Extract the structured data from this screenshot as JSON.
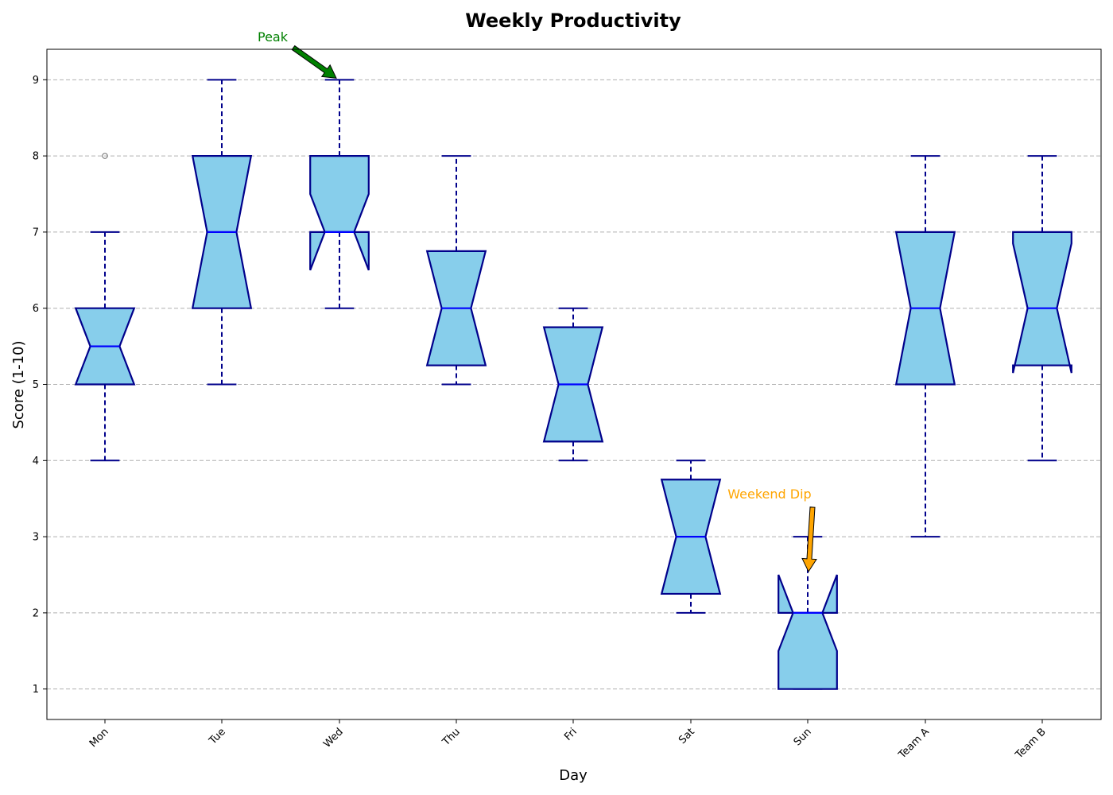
{
  "chart_data": {
    "type": "boxplot",
    "title": "Weekly Productivity",
    "xlabel": "Day",
    "ylabel": "Score (1-10)",
    "ylim": [
      0.6,
      9.4
    ],
    "yticks": [
      1,
      2,
      3,
      4,
      5,
      6,
      7,
      8,
      9
    ],
    "grid": "y-dashed",
    "notched": true,
    "categories": [
      "Mon",
      "Tue",
      "Wed",
      "Thu",
      "Fri",
      "Sat",
      "Sun",
      "Team A",
      "Team B"
    ],
    "boxes": [
      {
        "label": "Mon",
        "whisker_low": 4,
        "q1": 5,
        "median": 5.5,
        "q3": 6,
        "whisker_high": 7,
        "notch": [
          5.0,
          6.0
        ],
        "outliers": [
          8
        ]
      },
      {
        "label": "Tue",
        "whisker_low": 5,
        "q1": 6,
        "median": 7,
        "q3": 8,
        "whisker_high": 9,
        "notch": [
          6.0,
          8.0
        ],
        "outliers": []
      },
      {
        "label": "Wed",
        "whisker_low": 6,
        "q1": 7,
        "median": 7,
        "q3": 8,
        "whisker_high": 9,
        "notch": [
          6.5,
          7.5
        ],
        "outliers": []
      },
      {
        "label": "Thu",
        "whisker_low": 5,
        "q1": 5.25,
        "median": 6,
        "q3": 6.75,
        "whisker_high": 8,
        "notch": [
          5.25,
          6.75
        ],
        "outliers": []
      },
      {
        "label": "Fri",
        "whisker_low": 4,
        "q1": 4.25,
        "median": 5,
        "q3": 5.75,
        "whisker_high": 6,
        "notch": [
          4.25,
          5.75
        ],
        "outliers": []
      },
      {
        "label": "Sat",
        "whisker_low": 2,
        "q1": 2.25,
        "median": 3,
        "q3": 3.75,
        "whisker_high": 4,
        "notch": [
          2.25,
          3.75
        ],
        "outliers": []
      },
      {
        "label": "Sun",
        "whisker_low": 1,
        "q1": 1,
        "median": 2,
        "q3": 2,
        "whisker_high": 3,
        "notch": [
          1.5,
          2.5
        ],
        "outliers": []
      },
      {
        "label": "Team A",
        "whisker_low": 3,
        "q1": 5,
        "median": 6,
        "q3": 7,
        "whisker_high": 8,
        "notch": [
          5.0,
          7.0
        ],
        "outliers": []
      },
      {
        "label": "Team B",
        "whisker_low": 4,
        "q1": 5.25,
        "median": 6,
        "q3": 7,
        "whisker_high": 8,
        "notch": [
          5.15,
          6.85
        ],
        "outliers": []
      }
    ],
    "annotations": [
      {
        "text": "Peak",
        "color": "#008000",
        "arrow_color": "#008000",
        "points_to": {
          "x": "Wed",
          "y": 9
        }
      },
      {
        "text": "Weekend Dip",
        "color": "#ffa500",
        "arrow_color": "#ffa500",
        "points_to": {
          "x": "Sun",
          "y": 2.5
        }
      }
    ],
    "colors": {
      "box_fill": "#87ceeb",
      "box_edge": "#00008b",
      "median": "#0000ff",
      "whisker": "#00008b",
      "outlier": "#808080",
      "grid": "#b0b0b0"
    }
  }
}
